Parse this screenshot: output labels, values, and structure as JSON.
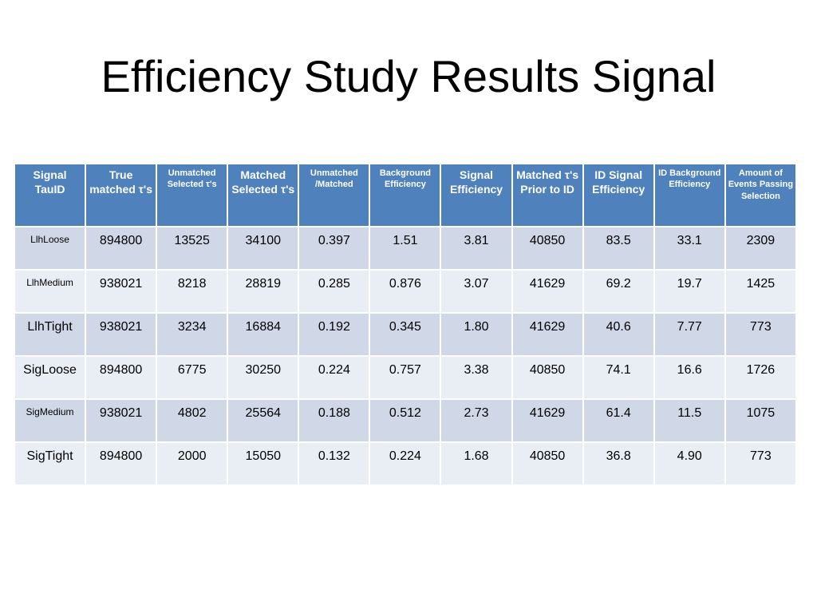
{
  "title": "Efficiency Study Results Signal",
  "table": {
    "headers": [
      "Signal TauID",
      "True matched τ's",
      "Unmatched Selected τ's",
      "Matched Selected τ's",
      "Unmatched /Matched",
      "Background Efficiency",
      "Signal Efficiency",
      "Matched τ's  Prior to ID",
      "ID Signal Efficiency",
      "ID Background Efficiency",
      "Amount of Events Passing Selection"
    ],
    "rows": [
      [
        "LlhLoose",
        "894800",
        "13525",
        "34100",
        "0.397",
        "1.51",
        "3.81",
        "40850",
        "83.5",
        "33.1",
        "2309"
      ],
      [
        "LlhMedium",
        "938021",
        "8218",
        "28819",
        "0.285",
        "0.876",
        "3.07",
        "41629",
        "69.2",
        "19.7",
        "1425"
      ],
      [
        "LlhTight",
        "938021",
        "3234",
        "16884",
        "0.192",
        "0.345",
        "1.80",
        "41629",
        "40.6",
        "7.77",
        "773"
      ],
      [
        "SigLoose",
        "894800",
        "6775",
        "30250",
        "0.224",
        "0.757",
        "3.38",
        "40850",
        "74.1",
        "16.6",
        "1726"
      ],
      [
        "SigMedium",
        "938021",
        "4802",
        "25564",
        "0.188",
        "0.512",
        "2.73",
        "41629",
        "61.4",
        "11.5",
        "1075"
      ],
      [
        "SigTight",
        "894800",
        "2000",
        "15050",
        "0.132",
        "0.224",
        "1.68",
        "40850",
        "36.8",
        "4.90",
        "773"
      ]
    ]
  }
}
